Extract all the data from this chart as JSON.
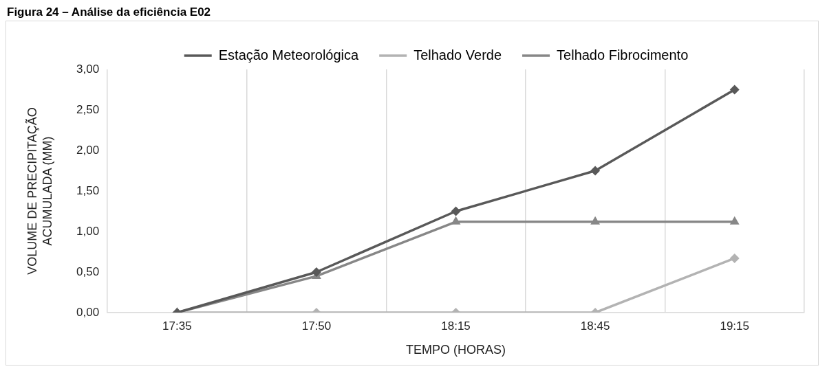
{
  "chart_data": {
    "type": "line",
    "title": "Figura 24 – Análise da eficiência E02",
    "xlabel": "TEMPO (HORAS)",
    "ylabel": "VOLUME DE PRECIPITAÇÃO ACUMULADA (MM)",
    "categories": [
      "17:35",
      "17:50",
      "18:15",
      "18:45",
      "19:15"
    ],
    "series": [
      {
        "name": "Estação Meteorológica",
        "color": "#595959",
        "marker": "diamond",
        "values": [
          0,
          0.5,
          1.25,
          1.75,
          2.75
        ]
      },
      {
        "name": "Telhado Verde",
        "color": "#b3b3b3",
        "marker": "diamond",
        "values": [
          0,
          0,
          0,
          0,
          0.67
        ]
      },
      {
        "name": "Telhado Fibrocimento",
        "color": "#878787",
        "marker": "triangle",
        "values": [
          0,
          0.45,
          1.12,
          1.12,
          1.12
        ]
      }
    ],
    "ylim": [
      0,
      3
    ],
    "yticks": [
      {
        "value": 0,
        "label": "0,00"
      },
      {
        "value": 0.5,
        "label": "0,50"
      },
      {
        "value": 1,
        "label": "1,00"
      },
      {
        "value": 1.5,
        "label": "1,50"
      },
      {
        "value": 2,
        "label": "2,00"
      },
      {
        "value": 2.5,
        "label": "2,50"
      },
      {
        "value": 3,
        "label": "3,00"
      }
    ],
    "grid": "x",
    "legend": "top",
    "line_style": "solid"
  }
}
